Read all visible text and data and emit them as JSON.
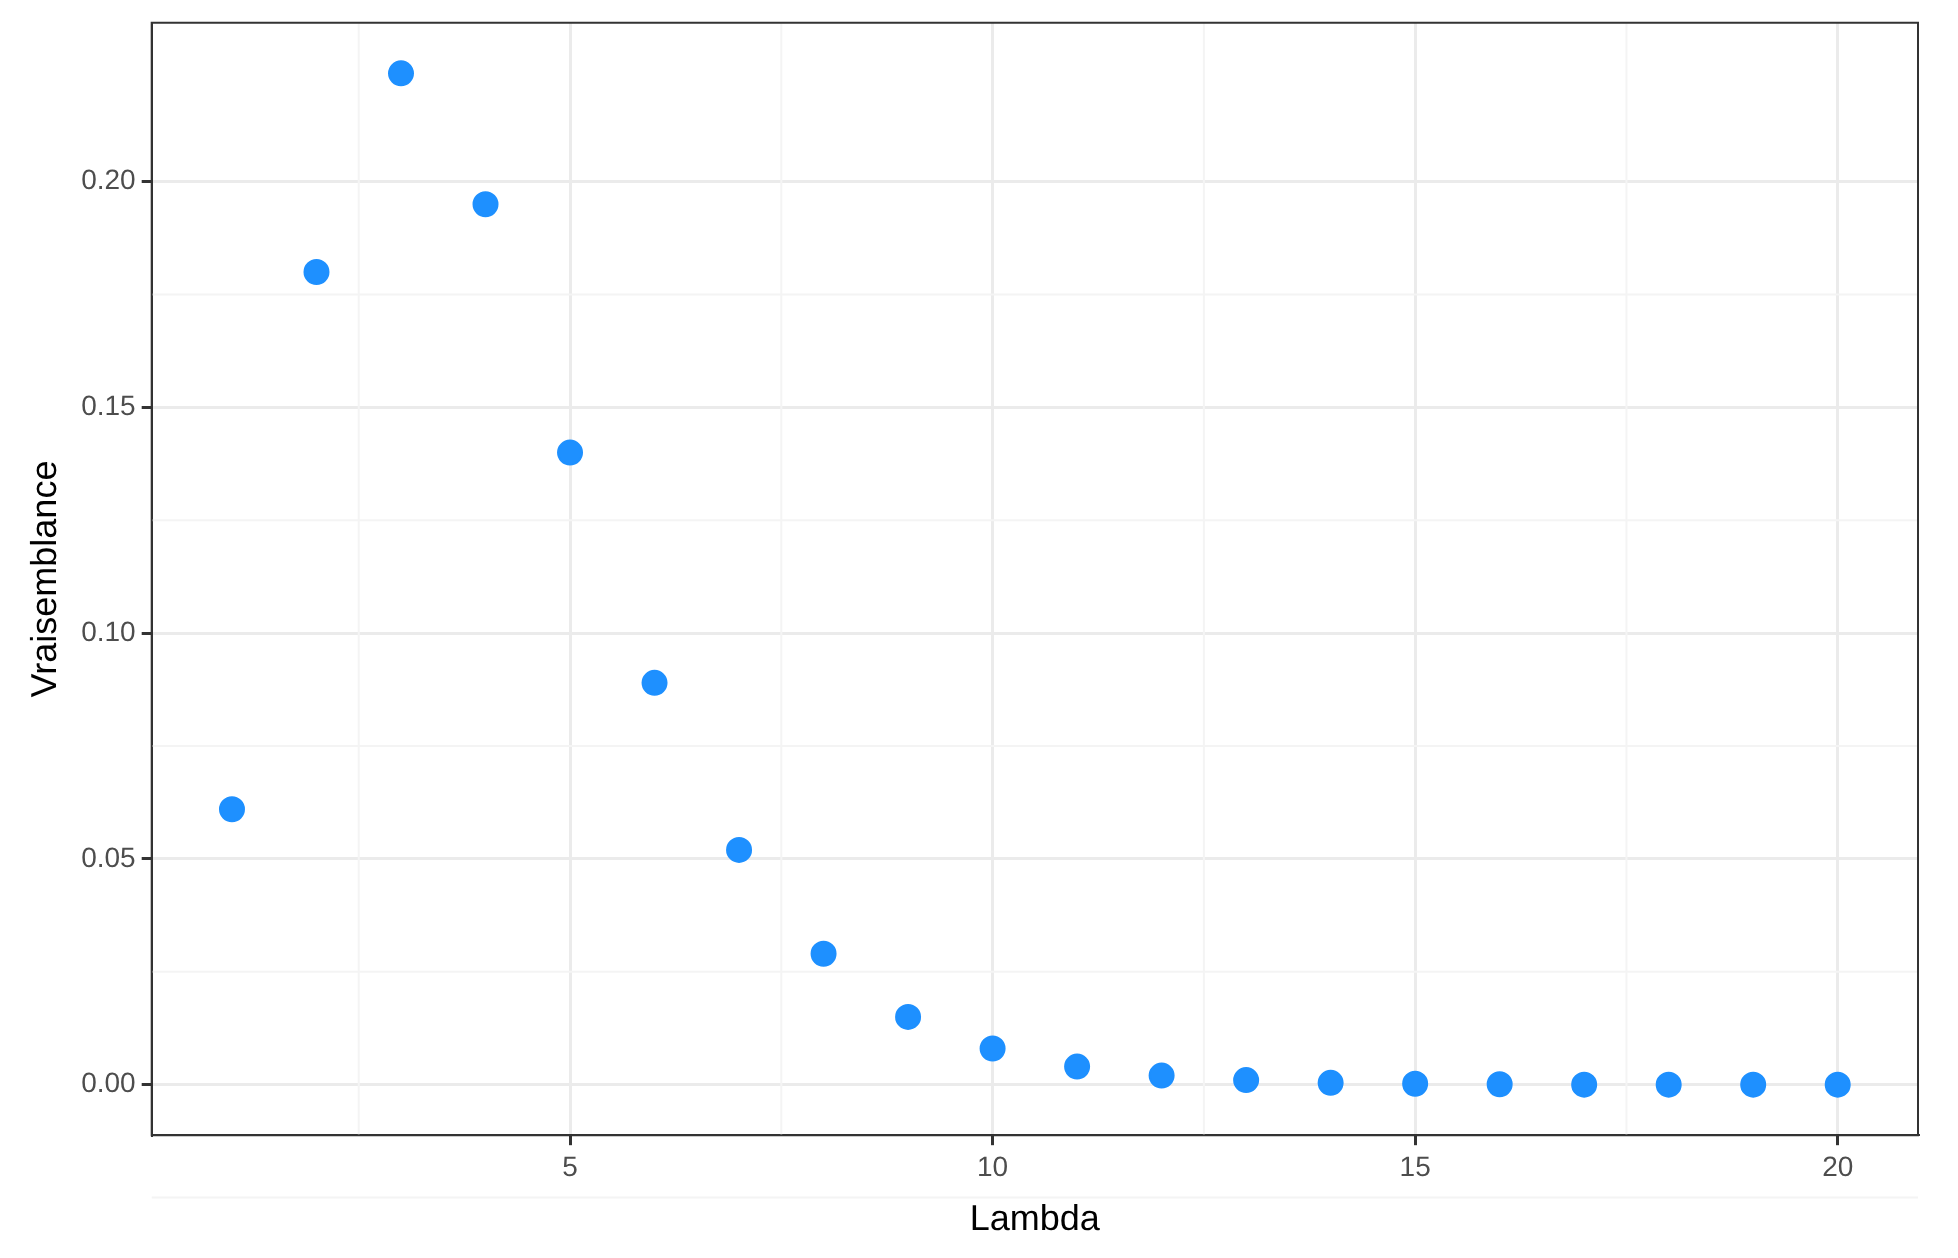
{
  "chart_data": {
    "type": "scatter",
    "xlabel": "Lambda",
    "ylabel": "Vraisemblance",
    "x": [
      1,
      2,
      3,
      4,
      5,
      6,
      7,
      8,
      9,
      10,
      11,
      12,
      13,
      14,
      15,
      16,
      17,
      18,
      19,
      20
    ],
    "series": [
      {
        "color": "#1e90ff",
        "values": [
          0.061,
          0.18,
          0.224,
          0.195,
          0.14,
          0.089,
          0.052,
          0.029,
          0.015,
          0.008,
          0.004,
          0.002,
          0.001,
          0.0004,
          0.0002,
          0.0001,
          0,
          0,
          0,
          0
        ]
      }
    ],
    "xlim": [
      0.05,
      20.95
    ],
    "xticks": [
      5,
      10,
      15,
      20
    ],
    "ylim": [
      -0.0112,
      0.2352
    ],
    "yticks": [
      {
        "value": 0,
        "label": "0.00"
      },
      {
        "value": 0.05,
        "label": "0.05"
      },
      {
        "value": 0.1,
        "label": "0.10"
      },
      {
        "value": 0.15,
        "label": "0.15"
      },
      {
        "value": 0.2,
        "label": "0.20"
      }
    ],
    "grid": true,
    "marker": "circle",
    "legend": false
  }
}
